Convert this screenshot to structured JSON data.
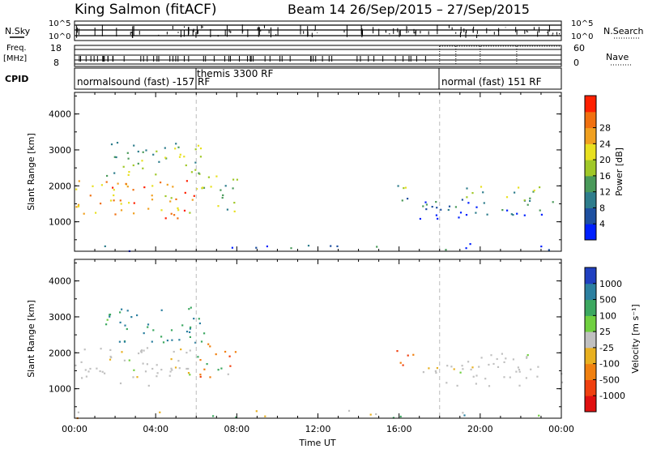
{
  "header": {
    "title": "King Salmon (fitACF)",
    "beam_date": "Beam 14  26/Sep/2015 – 27/Sep/2015"
  },
  "strips": {
    "nsky_label": "N.Sky",
    "nsearch_label": "N.Search",
    "freq_label_1": "Freq.",
    "freq_label_2": "[MHz]",
    "nave_label": "Nave",
    "cpid_label": "CPID",
    "left_ticks_top": [
      "10^5",
      "10^0"
    ],
    "right_ticks_top": [
      "10^5",
      "10^0"
    ],
    "left_ticks_freq": [
      "18",
      "8"
    ],
    "right_ticks_nave": [
      "60",
      "0"
    ],
    "cpid_segments": [
      {
        "text": "normalsound (fast) -157 RF",
        "start_h": 0
      },
      {
        "text": "themis 3300 RF",
        "start_h": 6
      },
      {
        "text": "normal (fast) 151 RF",
        "start_h": 18
      }
    ]
  },
  "colors": {
    "power_scale": [
      "#0020ff",
      "#1e50a0",
      "#2e7d8c",
      "#4a9a5a",
      "#a0c828",
      "#e8e020",
      "#f0a020",
      "#f07010",
      "#ff2000"
    ],
    "velocity_scale": [
      "#2040c0",
      "#2c80a0",
      "#3ca860",
      "#70d040",
      "#c0c0c0",
      "#e8b020",
      "#f08010",
      "#f04010",
      "#e01010"
    ]
  },
  "chart_data": [
    {
      "type": "heatmap",
      "panel": "power",
      "ylabel": "Slant Range [km]",
      "xlabel": "Time UT",
      "x_ticks": [
        "00:00",
        "04:00",
        "08:00",
        "12:00",
        "16:00",
        "20:00",
        "00:00"
      ],
      "xlim_hours": [
        0,
        24
      ],
      "y_ticks": [
        "1000",
        "2000",
        "3000",
        "4000"
      ],
      "ylim_km": [
        180,
        4600
      ],
      "colorbar": {
        "label": "Power [dB]",
        "ticks": [
          "4",
          "8",
          "12",
          "16",
          "20",
          "24",
          "28"
        ],
        "range": [
          0,
          30
        ]
      },
      "regions": [
        {
          "t0": 0.0,
          "t1": 6.0,
          "r0": 1100,
          "r1": 2200,
          "level": 0.75
        },
        {
          "t0": 6.0,
          "t1": 8.0,
          "r0": 1300,
          "r1": 2300,
          "level": 0.4
        },
        {
          "t0": 1.5,
          "t1": 6.5,
          "r0": 2300,
          "r1": 3300,
          "level": 0.45
        },
        {
          "t0": 15.5,
          "t1": 16.7,
          "r0": 1600,
          "r1": 2100,
          "level": 0.4
        },
        {
          "t0": 17.0,
          "t1": 24.0,
          "r0": 1100,
          "r1": 1700,
          "level": 0.2
        },
        {
          "t0": 19.0,
          "t1": 23.0,
          "r0": 1600,
          "r1": 2000,
          "level": 0.45
        },
        {
          "t0": 0.0,
          "t1": 24.0,
          "r0": 200,
          "r1": 420,
          "level": 0.15
        }
      ],
      "gridlines_hours": [
        6,
        18
      ]
    },
    {
      "type": "heatmap",
      "panel": "velocity",
      "ylabel": "Slant Range [km]",
      "xlabel": "Time UT",
      "x_ticks": [
        "00:00",
        "04:00",
        "08:00",
        "12:00",
        "16:00",
        "20:00",
        "00:00"
      ],
      "xlim_hours": [
        0,
        24
      ],
      "y_ticks": [
        "1000",
        "2000",
        "3000",
        "4000"
      ],
      "ylim_km": [
        180,
        4600
      ],
      "colorbar": {
        "label": "Velocity [m s⁻¹]",
        "ticks": [
          "1000",
          "500",
          "100",
          "25",
          "-25",
          "-100",
          "-500",
          "-1000"
        ],
        "range": [
          -1200,
          1200
        ]
      },
      "regions": [
        {
          "t0": 0.0,
          "t1": 6.0,
          "r0": 1100,
          "r1": 2200,
          "vel": 0
        },
        {
          "t0": 6.0,
          "t1": 8.0,
          "r0": 1300,
          "r1": 2300,
          "vel": -100
        },
        {
          "t0": 1.5,
          "t1": 6.5,
          "r0": 2300,
          "r1": 3300,
          "vel": 300
        },
        {
          "t0": 15.5,
          "t1": 16.7,
          "r0": 1600,
          "r1": 2100,
          "vel": -300
        },
        {
          "t0": 17.0,
          "t1": 24.0,
          "r0": 1100,
          "r1": 1700,
          "vel": 0
        },
        {
          "t0": 19.0,
          "t1": 23.0,
          "r0": 1600,
          "r1": 2000,
          "vel": 0
        },
        {
          "t0": 0.0,
          "t1": 24.0,
          "r0": 200,
          "r1": 420,
          "vel": 80
        }
      ],
      "gridlines_hours": [
        6,
        18
      ]
    }
  ]
}
